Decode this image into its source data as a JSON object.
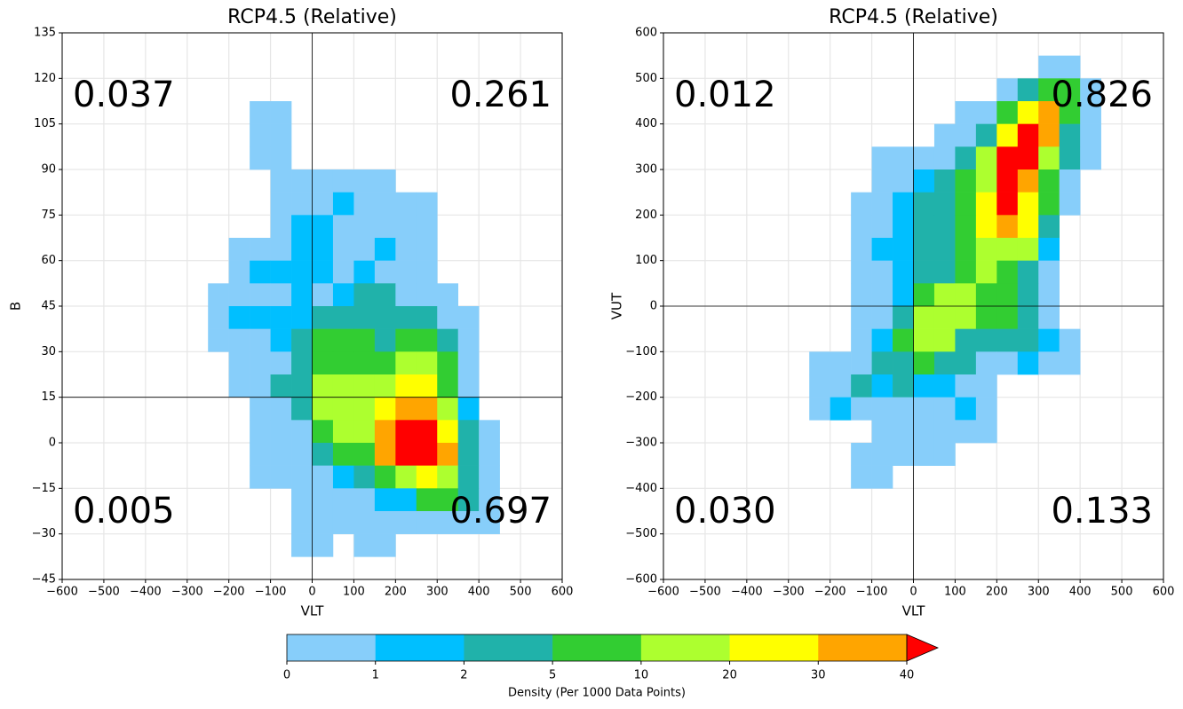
{
  "chart_data": [
    {
      "type": "heatmap",
      "title": "RCP4.5 (Relative)",
      "x_label": "VLT",
      "y_label": "B",
      "xlim": [
        -600,
        600
      ],
      "ylim": [
        -45,
        135
      ],
      "xticks": [
        {
          "value": -600,
          "label": "−600"
        },
        {
          "value": -500,
          "label": "−500"
        },
        {
          "value": -400,
          "label": "−400"
        },
        {
          "value": -300,
          "label": "−300"
        },
        {
          "value": -200,
          "label": "−200"
        },
        {
          "value": -100,
          "label": "−100"
        },
        0,
        100,
        200,
        300,
        400,
        500,
        600
      ],
      "yticks": [
        {
          "value": -45,
          "label": "−45"
        },
        {
          "value": -30,
          "label": "−30"
        },
        {
          "value": -15,
          "label": "−15"
        },
        0,
        15,
        30,
        45,
        60,
        75,
        90,
        105,
        120,
        135
      ],
      "grid": true,
      "hline": 15,
      "vline": 0,
      "x_edges": [
        -250,
        -200,
        -150,
        -100,
        -50,
        0,
        50,
        100,
        150,
        200,
        250,
        300,
        350,
        400,
        450
      ],
      "y_edges": [
        112.5,
        105,
        97.5,
        90,
        82.5,
        75,
        67.5,
        60,
        52.5,
        45,
        37.5,
        30,
        22.5,
        15,
        7.5,
        0,
        -7.5,
        -15,
        -22.5,
        -30,
        -37.5
      ],
      "values": [
        [
          null,
          null,
          0.5,
          0.5,
          null,
          null,
          null,
          null,
          null,
          null,
          null,
          null,
          null,
          null
        ],
        [
          null,
          null,
          0.5,
          0.5,
          null,
          null,
          null,
          null,
          null,
          null,
          null,
          null,
          null,
          null
        ],
        [
          null,
          null,
          0.5,
          0.5,
          null,
          null,
          null,
          null,
          null,
          null,
          null,
          null,
          null,
          null
        ],
        [
          null,
          null,
          null,
          0.5,
          0.5,
          0.5,
          0.5,
          0.5,
          0.5,
          null,
          null,
          null,
          null,
          null
        ],
        [
          null,
          null,
          null,
          0.5,
          0.5,
          0.5,
          1.5,
          0.5,
          0.5,
          0.5,
          0.5,
          null,
          null,
          null
        ],
        [
          null,
          null,
          null,
          0.5,
          1.5,
          1.5,
          0.5,
          0.5,
          0.5,
          0.5,
          0.5,
          null,
          null,
          null
        ],
        [
          null,
          0.5,
          0.5,
          0.5,
          1.5,
          1.5,
          0.5,
          0.5,
          1.5,
          0.5,
          0.5,
          null,
          null,
          null
        ],
        [
          null,
          0.5,
          1.5,
          1.5,
          1.5,
          1.5,
          0.5,
          1.5,
          0.5,
          0.5,
          0.5,
          null,
          null,
          null
        ],
        [
          0.5,
          0.5,
          0.5,
          0.5,
          1.5,
          0.5,
          1.5,
          3.5,
          3.5,
          0.5,
          0.5,
          0.5,
          null,
          null
        ],
        [
          0.5,
          1.5,
          1.5,
          1.5,
          1.5,
          3.5,
          3.5,
          3.5,
          3.5,
          3.5,
          3.5,
          0.5,
          0.5,
          null
        ],
        [
          0.5,
          0.5,
          0.5,
          1.5,
          3.5,
          7.5,
          7.5,
          7.5,
          3.5,
          7.5,
          7.5,
          3.5,
          0.5,
          null
        ],
        [
          null,
          0.5,
          0.5,
          0.5,
          3.5,
          7.5,
          7.5,
          7.5,
          7.5,
          15,
          15,
          7.5,
          0.5,
          null
        ],
        [
          null,
          0.5,
          0.5,
          3.5,
          3.5,
          15,
          15,
          15,
          15,
          25,
          25,
          7.5,
          0.5,
          null
        ],
        [
          null,
          null,
          0.5,
          0.5,
          3.5,
          15,
          15,
          15,
          25,
          35,
          35,
          15,
          1.5,
          null
        ],
        [
          null,
          null,
          0.5,
          0.5,
          0.5,
          7.5,
          15,
          15,
          35,
          45,
          45,
          25,
          3.5,
          0.5
        ],
        [
          null,
          null,
          0.5,
          0.5,
          0.5,
          3.5,
          7.5,
          7.5,
          35,
          45,
          45,
          35,
          3.5,
          0.5
        ],
        [
          null,
          null,
          0.5,
          0.5,
          0.5,
          0.5,
          1.5,
          3.5,
          7.5,
          15,
          25,
          15,
          3.5,
          0.5
        ],
        [
          null,
          null,
          null,
          null,
          0.5,
          0.5,
          0.5,
          0.5,
          1.5,
          1.5,
          7.5,
          7.5,
          3.5,
          0.5
        ],
        [
          null,
          null,
          null,
          null,
          0.5,
          0.5,
          0.5,
          0.5,
          0.5,
          0.5,
          0.5,
          0.5,
          0.5,
          0.5
        ],
        [
          null,
          null,
          null,
          null,
          0.5,
          0.5,
          null,
          0.5,
          0.5,
          null,
          null,
          null,
          null,
          null
        ]
      ],
      "annotations": [
        {
          "text": "0.037",
          "position": "top-left"
        },
        {
          "text": "0.261",
          "position": "top-right"
        },
        {
          "text": "0.005",
          "position": "bottom-left"
        },
        {
          "text": "0.697",
          "position": "bottom-right"
        }
      ]
    },
    {
      "type": "heatmap",
      "title": "RCP4.5 (Relative)",
      "x_label": "VLT",
      "y_label": "VUT",
      "xlim": [
        -600,
        600
      ],
      "ylim": [
        -600,
        600
      ],
      "xticks": [
        {
          "value": -600,
          "label": "−600"
        },
        {
          "value": -500,
          "label": "−500"
        },
        {
          "value": -400,
          "label": "−400"
        },
        {
          "value": -300,
          "label": "−300"
        },
        {
          "value": -200,
          "label": "−200"
        },
        {
          "value": -100,
          "label": "−100"
        },
        0,
        100,
        200,
        300,
        400,
        500,
        600
      ],
      "yticks": [
        {
          "value": -600,
          "label": "−600"
        },
        {
          "value": -500,
          "label": "−500"
        },
        {
          "value": -400,
          "label": "−400"
        },
        {
          "value": -300,
          "label": "−300"
        },
        {
          "value": -200,
          "label": "−200"
        },
        {
          "value": -100,
          "label": "−100"
        },
        0,
        100,
        200,
        300,
        400,
        500,
        600
      ],
      "grid": true,
      "hline": 0,
      "vline": 0,
      "x_edges": [
        -250,
        -200,
        -150,
        -100,
        -50,
        0,
        50,
        100,
        150,
        200,
        250,
        300,
        350,
        400,
        450
      ],
      "y_edges": [
        550,
        500,
        450,
        400,
        350,
        300,
        250,
        200,
        150,
        100,
        50,
        0,
        -50,
        -100,
        -150,
        -200,
        -250,
        -300,
        -350,
        -400
      ],
      "values": [
        [
          null,
          null,
          null,
          null,
          null,
          null,
          null,
          null,
          null,
          null,
          null,
          0.5,
          0.5,
          null
        ],
        [
          null,
          null,
          null,
          null,
          null,
          null,
          null,
          null,
          null,
          0.5,
          3.5,
          7.5,
          7.5,
          0.5
        ],
        [
          null,
          null,
          null,
          null,
          null,
          null,
          null,
          0.5,
          0.5,
          7.5,
          25,
          35,
          7.5,
          0.5
        ],
        [
          null,
          null,
          null,
          null,
          null,
          null,
          0.5,
          0.5,
          3.5,
          25,
          45,
          35,
          3.5,
          0.5
        ],
        [
          null,
          null,
          null,
          0.5,
          0.5,
          0.5,
          0.5,
          3.5,
          15,
          45,
          45,
          15,
          3.5,
          0.5
        ],
        [
          null,
          null,
          null,
          0.5,
          0.5,
          1.5,
          3.5,
          7.5,
          15,
          45,
          35,
          7.5,
          0.5,
          null
        ],
        [
          null,
          null,
          0.5,
          0.5,
          1.5,
          3.5,
          3.5,
          7.5,
          25,
          45,
          25,
          7.5,
          0.5,
          null
        ],
        [
          null,
          null,
          0.5,
          0.5,
          1.5,
          3.5,
          3.5,
          7.5,
          25,
          35,
          25,
          3.5,
          null,
          null
        ],
        [
          null,
          null,
          0.5,
          1.5,
          1.5,
          3.5,
          3.5,
          7.5,
          15,
          15,
          15,
          1.5,
          null,
          null
        ],
        [
          null,
          null,
          0.5,
          0.5,
          1.5,
          3.5,
          3.5,
          7.5,
          15,
          7.5,
          3.5,
          0.5,
          null,
          null
        ],
        [
          null,
          null,
          0.5,
          0.5,
          1.5,
          7.5,
          15,
          15,
          7.5,
          7.5,
          3.5,
          0.5,
          null,
          null
        ],
        [
          null,
          null,
          0.5,
          0.5,
          3.5,
          15,
          15,
          15,
          7.5,
          7.5,
          3.5,
          0.5,
          null,
          null
        ],
        [
          null,
          null,
          0.5,
          1.5,
          7.5,
          15,
          15,
          3.5,
          3.5,
          3.5,
          3.5,
          1.5,
          0.5,
          null
        ],
        [
          0.5,
          0.5,
          0.5,
          3.5,
          3.5,
          7.5,
          3.5,
          3.5,
          0.5,
          0.5,
          1.5,
          0.5,
          0.5,
          null
        ],
        [
          0.5,
          0.5,
          3.5,
          1.5,
          3.5,
          1.5,
          1.5,
          0.5,
          0.5,
          null,
          null,
          null,
          null,
          null
        ],
        [
          0.5,
          1.5,
          0.5,
          0.5,
          0.5,
          0.5,
          0.5,
          1.5,
          0.5,
          null,
          null,
          null,
          null,
          null
        ],
        [
          null,
          null,
          null,
          0.5,
          0.5,
          0.5,
          0.5,
          0.5,
          0.5,
          null,
          null,
          null,
          null,
          null
        ],
        [
          null,
          null,
          0.5,
          0.5,
          0.5,
          0.5,
          0.5,
          null,
          null,
          null,
          null,
          null,
          null,
          null
        ],
        [
          null,
          null,
          0.5,
          0.5,
          null,
          null,
          null,
          null,
          null,
          null,
          null,
          null,
          null,
          null
        ]
      ],
      "annotations": [
        {
          "text": "0.012",
          "position": "top-left"
        },
        {
          "text": "0.826",
          "position": "top-right"
        },
        {
          "text": "0.030",
          "position": "bottom-left"
        },
        {
          "text": "0.133",
          "position": "bottom-right"
        }
      ]
    }
  ],
  "colorbar": {
    "label": "Density (Per 1000 Data Points)",
    "levels": [
      0,
      1,
      2,
      5,
      10,
      20,
      30,
      40
    ],
    "colors": [
      "#87cefa",
      "#00bfff",
      "#20b2aa",
      "#32cd32",
      "#adff2f",
      "#ffff00",
      "#ffa500",
      "#ff0000"
    ],
    "extend": "max"
  }
}
